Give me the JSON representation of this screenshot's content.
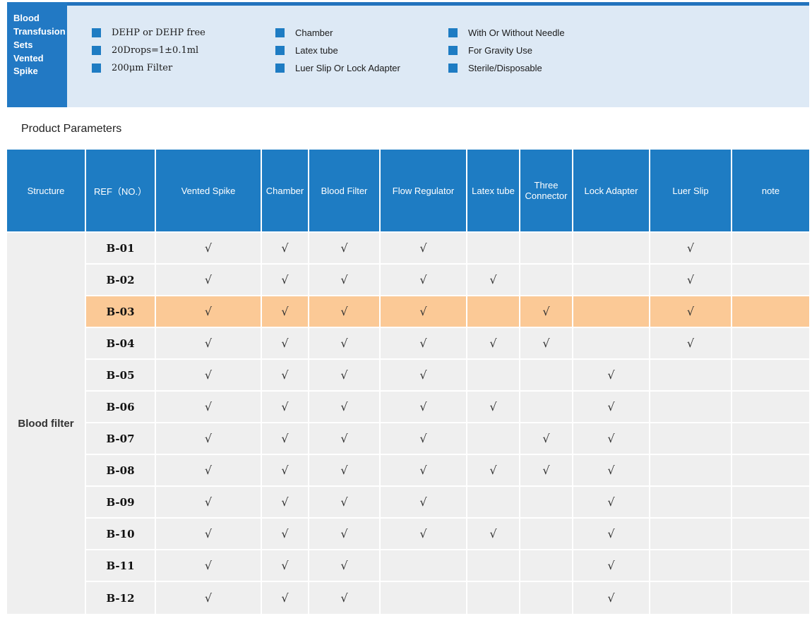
{
  "colors": {
    "accent_blue": "#1e7cc3",
    "hero_box_blue": "#2279c4",
    "hero_border_blue": "#2273bd",
    "banner_bg": "#dde9f5",
    "row_gray": "#efefef",
    "highlight_orange": "#fbc996"
  },
  "hero": {
    "title_lines": [
      "Blood",
      "Transfusion",
      "Sets",
      "Vented",
      "Spike"
    ],
    "feature_columns": [
      [
        "DEHP or DEHP free",
        "20Drops=1±0.1ml",
        "200μm Filter"
      ],
      [
        "Chamber",
        "Latex tube",
        "Luer Slip Or Lock Adapter"
      ],
      [
        "With Or Without Needle",
        "For Gravity Use",
        "Sterile/Disposable"
      ]
    ]
  },
  "section_title": "Product Parameters",
  "table": {
    "columns": [
      "Structure",
      "REF（NO.）",
      "Vented Spike",
      "Chamber",
      "Blood Filter",
      "Flow Regulator",
      "Latex tube",
      "Three Connector",
      "Lock Adapter",
      "Luer Slip",
      "note"
    ],
    "structure_label": "Blood filter",
    "check_mark": "√",
    "check_columns": [
      "Vented Spike",
      "Chamber",
      "Blood Filter",
      "Flow Regulator",
      "Latex tube",
      "Three Connector",
      "Lock Adapter",
      "Luer Slip",
      "note"
    ],
    "rows": [
      {
        "ref": "B-01",
        "checks": [
          1,
          1,
          1,
          1,
          0,
          0,
          0,
          1,
          0
        ],
        "highlight": false
      },
      {
        "ref": "B-02",
        "checks": [
          1,
          1,
          1,
          1,
          1,
          0,
          0,
          1,
          0
        ],
        "highlight": false
      },
      {
        "ref": "B-03",
        "checks": [
          1,
          1,
          1,
          1,
          0,
          1,
          0,
          1,
          0
        ],
        "highlight": true
      },
      {
        "ref": "B-04",
        "checks": [
          1,
          1,
          1,
          1,
          1,
          1,
          0,
          1,
          0
        ],
        "highlight": false
      },
      {
        "ref": "B-05",
        "checks": [
          1,
          1,
          1,
          1,
          0,
          0,
          1,
          0,
          0
        ],
        "highlight": false
      },
      {
        "ref": "B-06",
        "checks": [
          1,
          1,
          1,
          1,
          1,
          0,
          1,
          0,
          0
        ],
        "highlight": false
      },
      {
        "ref": "B-07",
        "checks": [
          1,
          1,
          1,
          1,
          0,
          1,
          1,
          0,
          0
        ],
        "highlight": false
      },
      {
        "ref": "B-08",
        "checks": [
          1,
          1,
          1,
          1,
          1,
          1,
          1,
          0,
          0
        ],
        "highlight": false
      },
      {
        "ref": "B-09",
        "checks": [
          1,
          1,
          1,
          1,
          0,
          0,
          1,
          0,
          0
        ],
        "highlight": false
      },
      {
        "ref": "B-10",
        "checks": [
          1,
          1,
          1,
          1,
          1,
          0,
          1,
          0,
          0
        ],
        "highlight": false
      },
      {
        "ref": "B-11",
        "checks": [
          1,
          1,
          1,
          0,
          0,
          0,
          1,
          0,
          0
        ],
        "highlight": false
      },
      {
        "ref": "B-12",
        "checks": [
          1,
          1,
          1,
          0,
          0,
          0,
          1,
          0,
          0
        ],
        "highlight": false
      }
    ]
  }
}
